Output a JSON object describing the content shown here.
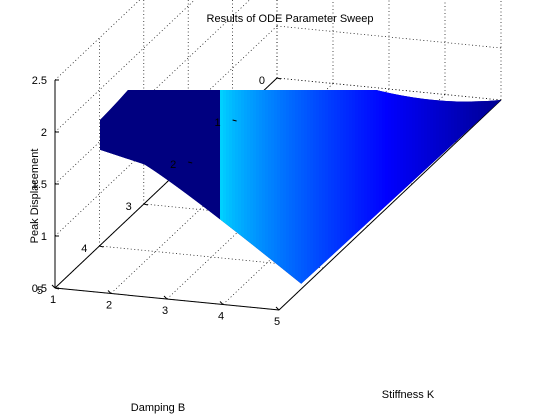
{
  "chart_data": {
    "type": "surface",
    "title": "Results of ODE Parameter Sweep",
    "xlabel": "Stiffness K",
    "ylabel": "Damping B",
    "zlabel": "Peak Displacement",
    "x_range": [
      1,
      5
    ],
    "y_range": [
      0,
      5
    ],
    "z_range": [
      0.5,
      2.5
    ],
    "x_ticks": [
      "1",
      "2",
      "3",
      "4",
      "5"
    ],
    "y_ticks": [
      "0",
      "1",
      "2",
      "3",
      "4",
      "5"
    ],
    "z_ticks": [
      "0.5",
      "1",
      "1.5",
      "2",
      "2.5"
    ],
    "grid": true,
    "colormap": "jet",
    "surface_corners": {
      "K1_B0": 2.5,
      "K1_B4.5": 1.7,
      "K5_B0": 0.5,
      "K5_B4.5": 0.55
    }
  }
}
